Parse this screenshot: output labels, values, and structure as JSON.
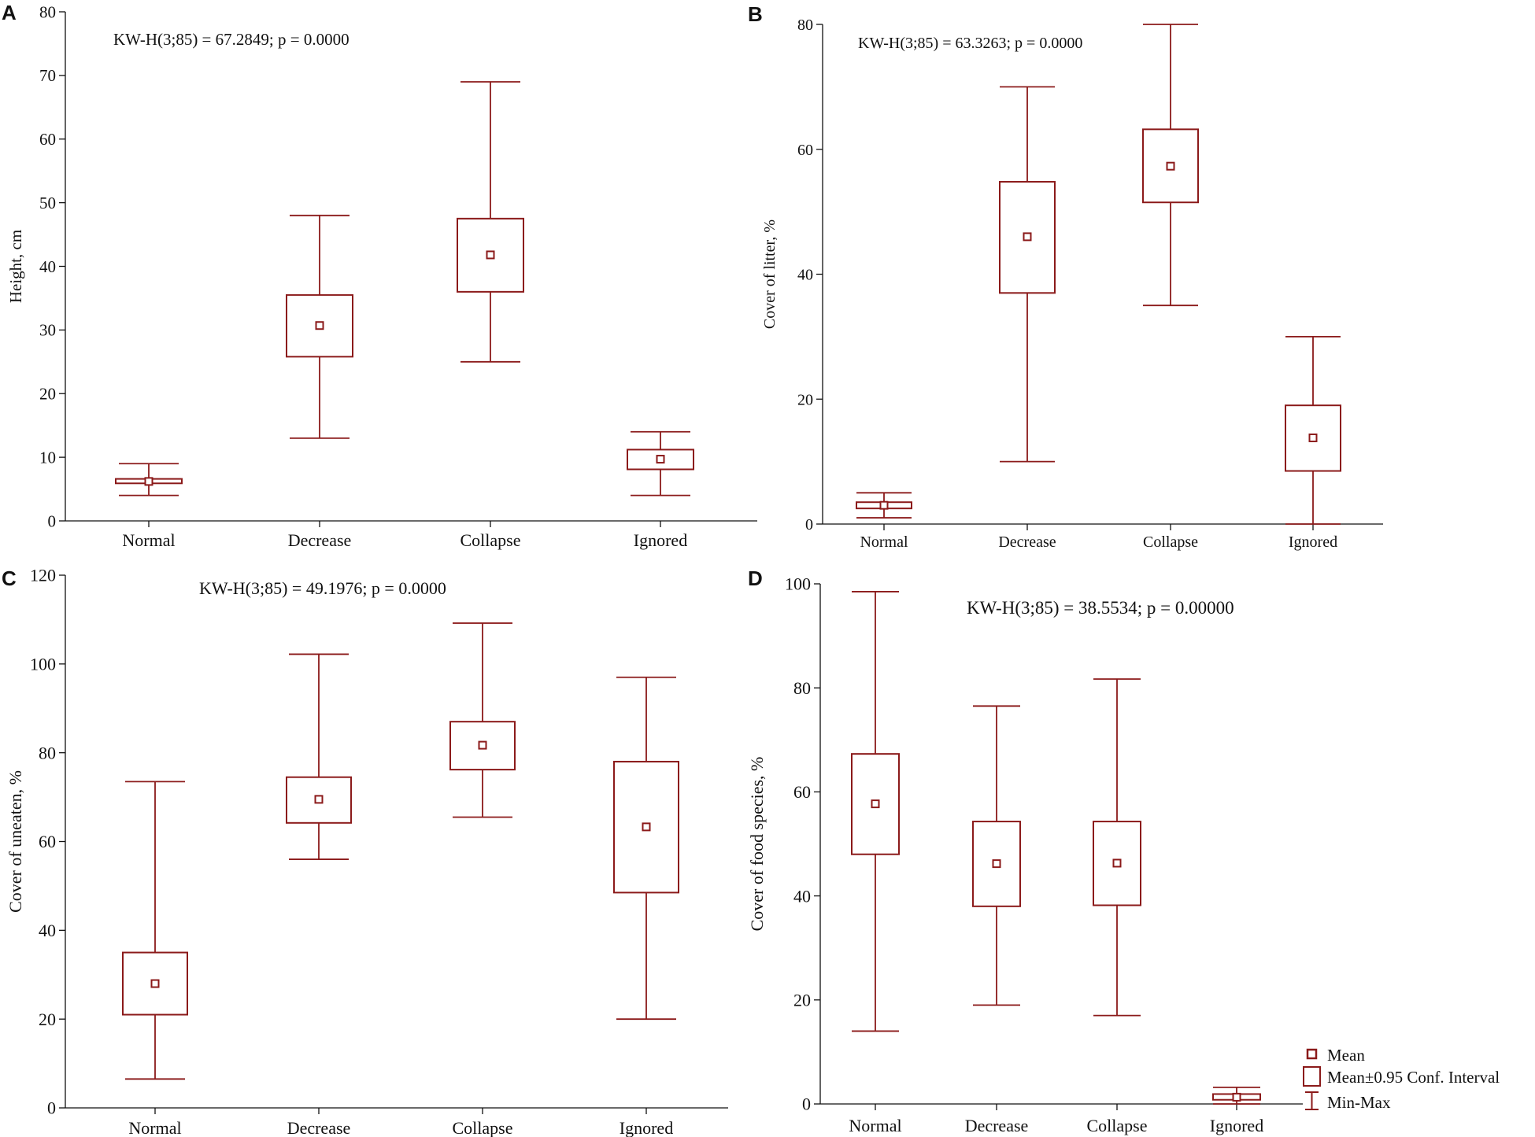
{
  "figure": {
    "legend": {
      "mean": "Mean",
      "ci": "Mean±0.95 Conf. Interval",
      "minmax": "Min-Max",
      "placement": "bottom-right"
    }
  },
  "colors": {
    "series": "#8B1A1A",
    "axis": "#111111",
    "text": "#111111"
  },
  "chart_data": [
    {
      "panel": "A",
      "type": "boxplot",
      "categories": [
        "Normal",
        "Decrease",
        "Collapse",
        "Ignored"
      ],
      "series": [
        {
          "name": "Height",
          "mean": [
            6.2,
            30.7,
            41.8,
            9.7
          ],
          "ci_low": [
            5.9,
            25.8,
            36.0,
            8.1
          ],
          "ci_high": [
            6.6,
            35.5,
            47.5,
            11.2
          ],
          "min": [
            4,
            13,
            25,
            4
          ],
          "max": [
            9,
            48,
            69,
            14
          ]
        }
      ],
      "ylabel": "Height, cm",
      "xlabel": "",
      "ylim": [
        0,
        80
      ],
      "yticks": [
        0,
        10,
        20,
        30,
        40,
        50,
        60,
        70,
        80
      ],
      "annotation": "KW-H(3;85) = 67.2849; p = 0.0000"
    },
    {
      "panel": "B",
      "type": "boxplot",
      "categories": [
        "Normal",
        "Decrease",
        "Collapse",
        "Ignored"
      ],
      "series": [
        {
          "name": "Cover of litter",
          "mean": [
            3.0,
            46.0,
            57.3,
            13.8
          ],
          "ci_low": [
            2.5,
            37.0,
            51.5,
            8.5
          ],
          "ci_high": [
            3.5,
            54.8,
            63.2,
            19.0
          ],
          "min": [
            1,
            10,
            35,
            0
          ],
          "max": [
            5,
            70,
            80,
            30
          ]
        }
      ],
      "ylabel": "Cover of litter, %",
      "xlabel": "",
      "ylim": [
        0,
        80
      ],
      "yticks": [
        0,
        20,
        40,
        60,
        80
      ],
      "annotation": "KW-H(3;85) = 63.3263; p = 0.0000"
    },
    {
      "panel": "C",
      "type": "boxplot",
      "categories": [
        "Normal",
        "Decrease",
        "Collapse",
        "Ignored"
      ],
      "series": [
        {
          "name": "Cover of uneaten",
          "mean": [
            28,
            69.5,
            81.7,
            63.3
          ],
          "ci_low": [
            21,
            64.2,
            76.2,
            48.5
          ],
          "ci_high": [
            35,
            74.5,
            87.0,
            78.0
          ],
          "min": [
            6.5,
            56,
            65.5,
            20
          ],
          "max": [
            73.5,
            102.2,
            109.2,
            97
          ]
        }
      ],
      "ylabel": "Cover of uneaten, %",
      "xlabel": "",
      "ylim": [
        0,
        120
      ],
      "yticks": [
        0,
        20,
        40,
        60,
        80,
        100,
        120
      ],
      "annotation": "KW-H(3;85) = 49.1976; p = 0.0000"
    },
    {
      "panel": "D",
      "type": "boxplot",
      "categories": [
        "Normal",
        "Decrease",
        "Collapse",
        "Ignored"
      ],
      "series": [
        {
          "name": "Cover of food species",
          "mean": [
            57.7,
            46.2,
            46.3,
            1.3
          ],
          "ci_low": [
            48.0,
            38.0,
            38.2,
            0.8
          ],
          "ci_high": [
            67.3,
            54.3,
            54.3,
            1.9
          ],
          "min": [
            14,
            19,
            17,
            0
          ],
          "max": [
            98.5,
            76.5,
            81.7,
            3.2
          ]
        }
      ],
      "ylabel": "Cover of food species, %",
      "xlabel": "",
      "ylim": [
        0,
        100
      ],
      "yticks": [
        0,
        20,
        40,
        60,
        80,
        100
      ],
      "annotation": "KW-H(3;85) = 38.5534; p = 0.00000"
    }
  ]
}
